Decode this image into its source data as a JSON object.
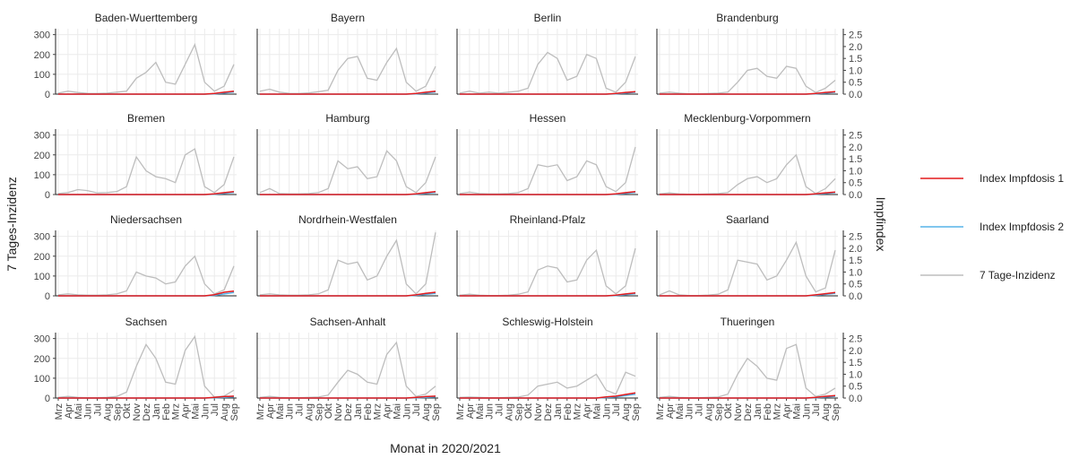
{
  "chart_data": {
    "type": "line",
    "xlabel": "Monat in 2020/2021",
    "ylabel": "7 Tages-Inzidenz",
    "y2label": "Impfindex",
    "ylim": [
      0,
      330
    ],
    "y2lim": [
      0,
      2.75
    ],
    "yticks": [
      "0",
      "100",
      "200",
      "300"
    ],
    "y2ticks": [
      "0.0",
      "0.5",
      "1.0",
      "1.5",
      "2.0",
      "2.5"
    ],
    "months": [
      "Mrz",
      "Apr",
      "Mai",
      "Jun",
      "Jul",
      "Aug",
      "Sep",
      "Okt",
      "Nov",
      "Dez",
      "Jan",
      "Feb",
      "Mrz",
      "Apr",
      "Mai",
      "Jun",
      "Jul",
      "Aug",
      "Sep"
    ],
    "grid": true,
    "legend_position": "right",
    "legend": [
      {
        "name": "Index Impfdosis 1",
        "color": "#e31a1c"
      },
      {
        "name": "Index Impfdosis 2",
        "color": "#56b4e9"
      },
      {
        "name": "7 Tage-Inzidenz",
        "color": "#bdbdbd"
      }
    ],
    "panels": [
      {
        "state": "Baden-Wuerttemberg",
        "incidence": [
          5,
          15,
          8,
          4,
          3,
          5,
          10,
          15,
          80,
          110,
          160,
          60,
          50,
          150,
          250,
          60,
          15,
          40,
          150
        ],
        "dose1": [
          0,
          0,
          0,
          0,
          0,
          0,
          0,
          0,
          0,
          0,
          0,
          0,
          0,
          0,
          0,
          0,
          0.03,
          0.08,
          0.12
        ],
        "dose2": [
          0,
          0,
          0,
          0,
          0,
          0,
          0,
          0,
          0,
          0,
          0,
          0,
          0,
          0,
          0,
          0,
          0.01,
          0.05,
          0.09
        ]
      },
      {
        "state": "Bayern",
        "incidence": [
          15,
          25,
          10,
          4,
          3,
          6,
          12,
          20,
          120,
          180,
          190,
          80,
          70,
          160,
          230,
          60,
          15,
          40,
          140
        ],
        "dose1": [
          0,
          0,
          0,
          0,
          0,
          0,
          0,
          0,
          0,
          0,
          0,
          0,
          0,
          0,
          0,
          0,
          0.03,
          0.08,
          0.12
        ],
        "dose2": [
          0,
          0,
          0,
          0,
          0,
          0,
          0,
          0,
          0,
          0,
          0,
          0,
          0,
          0,
          0,
          0,
          0.01,
          0.05,
          0.09
        ]
      },
      {
        "state": "Berlin",
        "incidence": [
          5,
          15,
          5,
          10,
          5,
          10,
          15,
          30,
          150,
          210,
          180,
          70,
          90,
          200,
          180,
          30,
          10,
          60,
          190
        ],
        "dose1": [
          0,
          0,
          0,
          0,
          0,
          0,
          0,
          0,
          0,
          0,
          0,
          0,
          0,
          0,
          0,
          0,
          0.03,
          0.07,
          0.1
        ],
        "dose2": [
          0,
          0,
          0,
          0,
          0,
          0,
          0,
          0,
          0,
          0,
          0,
          0,
          0,
          0,
          0,
          0,
          0.01,
          0.04,
          0.08
        ]
      },
      {
        "state": "Brandenburg",
        "incidence": [
          5,
          10,
          5,
          2,
          2,
          3,
          5,
          10,
          60,
          120,
          130,
          90,
          80,
          140,
          130,
          40,
          8,
          30,
          70
        ],
        "dose1": [
          0,
          0,
          0,
          0,
          0,
          0,
          0,
          0,
          0,
          0,
          0,
          0,
          0,
          0,
          0,
          0,
          0.03,
          0.07,
          0.1
        ],
        "dose2": [
          0,
          0,
          0,
          0,
          0,
          0,
          0,
          0,
          0,
          0,
          0,
          0,
          0,
          0,
          0,
          0,
          0.01,
          0.04,
          0.08
        ]
      },
      {
        "state": "Bremen",
        "incidence": [
          5,
          10,
          25,
          20,
          8,
          10,
          15,
          40,
          190,
          120,
          90,
          80,
          60,
          200,
          230,
          40,
          10,
          50,
          190
        ],
        "dose1": [
          0,
          0,
          0,
          0,
          0,
          0,
          0,
          0,
          0,
          0,
          0,
          0,
          0,
          0,
          0,
          0,
          0.03,
          0.08,
          0.12
        ],
        "dose2": [
          0,
          0,
          0,
          0,
          0,
          0,
          0,
          0,
          0,
          0,
          0,
          0,
          0,
          0,
          0,
          0,
          0.01,
          0.05,
          0.09
        ]
      },
      {
        "state": "Hamburg",
        "incidence": [
          10,
          30,
          5,
          3,
          3,
          5,
          10,
          30,
          170,
          130,
          140,
          80,
          90,
          220,
          170,
          40,
          10,
          60,
          190
        ],
        "dose1": [
          0,
          0,
          0,
          0,
          0,
          0,
          0,
          0,
          0,
          0,
          0,
          0,
          0,
          0,
          0,
          0,
          0.03,
          0.08,
          0.12
        ],
        "dose2": [
          0,
          0,
          0,
          0,
          0,
          0,
          0,
          0,
          0,
          0,
          0,
          0,
          0,
          0,
          0,
          0,
          0.01,
          0.05,
          0.09
        ]
      },
      {
        "state": "Hessen",
        "incidence": [
          5,
          12,
          5,
          3,
          3,
          5,
          10,
          30,
          150,
          140,
          150,
          70,
          90,
          170,
          150,
          40,
          15,
          60,
          240
        ],
        "dose1": [
          0,
          0,
          0,
          0,
          0,
          0,
          0,
          0,
          0,
          0,
          0,
          0,
          0,
          0,
          0,
          0,
          0.03,
          0.08,
          0.12
        ],
        "dose2": [
          0,
          0,
          0,
          0,
          0,
          0,
          0,
          0,
          0,
          0,
          0,
          0,
          0,
          0,
          0,
          0,
          0.01,
          0.05,
          0.09
        ]
      },
      {
        "state": "Mecklenburg-Vorpommern",
        "incidence": [
          3,
          8,
          3,
          2,
          2,
          3,
          5,
          10,
          50,
          80,
          90,
          60,
          80,
          150,
          200,
          40,
          5,
          30,
          80
        ],
        "dose1": [
          0,
          0,
          0,
          0,
          0,
          0,
          0,
          0,
          0,
          0,
          0,
          0,
          0,
          0,
          0,
          0,
          0.03,
          0.07,
          0.1
        ],
        "dose2": [
          0,
          0,
          0,
          0,
          0,
          0,
          0,
          0,
          0,
          0,
          0,
          0,
          0,
          0,
          0,
          0,
          0.01,
          0.04,
          0.08
        ]
      },
      {
        "state": "Niedersachsen",
        "incidence": [
          5,
          10,
          5,
          3,
          3,
          5,
          10,
          25,
          120,
          100,
          90,
          60,
          70,
          150,
          200,
          60,
          10,
          30,
          150
        ],
        "dose1": [
          0,
          0,
          0,
          0,
          0,
          0,
          0,
          0,
          0,
          0,
          0,
          0,
          0,
          0,
          0,
          0,
          0.05,
          0.15,
          0.2
        ],
        "dose2": [
          0,
          0,
          0,
          0,
          0,
          0,
          0,
          0,
          0,
          0,
          0,
          0,
          0,
          0,
          0,
          0,
          0.02,
          0.08,
          0.14
        ]
      },
      {
        "state": "Nordrhein-Westfalen",
        "incidence": [
          5,
          10,
          5,
          3,
          3,
          5,
          10,
          30,
          180,
          160,
          170,
          80,
          100,
          200,
          280,
          60,
          10,
          60,
          320
        ],
        "dose1": [
          0,
          0,
          0,
          0,
          0,
          0,
          0,
          0,
          0,
          0,
          0,
          0,
          0,
          0,
          0,
          0,
          0.04,
          0.1,
          0.15
        ],
        "dose2": [
          0,
          0,
          0,
          0,
          0,
          0,
          0,
          0,
          0,
          0,
          0,
          0,
          0,
          0,
          0,
          0,
          0.02,
          0.06,
          0.1
        ]
      },
      {
        "state": "Rheinland-Pfalz",
        "incidence": [
          3,
          8,
          3,
          2,
          2,
          3,
          8,
          20,
          130,
          150,
          140,
          70,
          80,
          180,
          230,
          50,
          10,
          50,
          240
        ],
        "dose1": [
          0,
          0,
          0,
          0,
          0,
          0,
          0,
          0,
          0,
          0,
          0,
          0,
          0,
          0,
          0,
          0,
          0.03,
          0.08,
          0.12
        ],
        "dose2": [
          0,
          0,
          0,
          0,
          0,
          0,
          0,
          0,
          0,
          0,
          0,
          0,
          0,
          0,
          0,
          0,
          0.01,
          0.05,
          0.09
        ]
      },
      {
        "state": "Saarland",
        "incidence": [
          5,
          25,
          5,
          2,
          2,
          4,
          8,
          30,
          180,
          170,
          160,
          80,
          100,
          180,
          270,
          100,
          20,
          40,
          230
        ],
        "dose1": [
          0,
          0,
          0,
          0,
          0,
          0,
          0,
          0,
          0,
          0,
          0,
          0,
          0,
          0,
          0,
          0,
          0.04,
          0.09,
          0.14
        ],
        "dose2": [
          0,
          0,
          0,
          0,
          0,
          0,
          0,
          0,
          0,
          0,
          0,
          0,
          0,
          0,
          0,
          0,
          0.02,
          0.06,
          0.1
        ]
      },
      {
        "state": "Sachsen",
        "incidence": [
          3,
          8,
          3,
          2,
          2,
          3,
          8,
          30,
          160,
          270,
          200,
          80,
          70,
          240,
          310,
          60,
          5,
          10,
          40
        ],
        "dose1": [
          0,
          0,
          0,
          0,
          0,
          0,
          0,
          0,
          0,
          0,
          0,
          0,
          0,
          0,
          0,
          0,
          0.03,
          0.06,
          0.08
        ],
        "dose2": [
          0,
          0,
          0,
          0,
          0,
          0,
          0,
          0,
          0,
          0,
          0,
          0,
          0,
          0,
          0,
          0,
          0.01,
          0.03,
          0.05
        ]
      },
      {
        "state": "Sachsen-Anhalt",
        "incidence": [
          3,
          8,
          3,
          2,
          2,
          3,
          5,
          15,
          80,
          140,
          120,
          80,
          70,
          220,
          280,
          60,
          8,
          20,
          60
        ],
        "dose1": [
          0,
          0,
          0,
          0,
          0,
          0,
          0,
          0,
          0,
          0,
          0,
          0,
          0,
          0,
          0,
          0,
          0.03,
          0.06,
          0.08
        ],
        "dose2": [
          0,
          0,
          0,
          0,
          0,
          0,
          0,
          0,
          0,
          0,
          0,
          0,
          0,
          0,
          0,
          0,
          0.01,
          0.03,
          0.05
        ]
      },
      {
        "state": "Schleswig-Holstein",
        "incidence": [
          3,
          5,
          3,
          2,
          2,
          3,
          5,
          15,
          60,
          70,
          80,
          50,
          60,
          90,
          120,
          40,
          20,
          130,
          110
        ],
        "dose1": [
          0,
          0,
          0,
          0,
          0,
          0,
          0,
          0,
          0,
          0,
          0,
          0,
          0,
          0,
          0,
          0.05,
          0.08,
          0.15,
          0.22
        ],
        "dose2": [
          0,
          0,
          0,
          0,
          0,
          0,
          0,
          0,
          0,
          0,
          0,
          0,
          0,
          0,
          0,
          0.02,
          0.05,
          0.1,
          0.16
        ]
      },
      {
        "state": "Thueringen",
        "incidence": [
          3,
          8,
          3,
          2,
          2,
          3,
          5,
          20,
          120,
          200,
          160,
          100,
          90,
          250,
          270,
          50,
          8,
          20,
          50
        ],
        "dose1": [
          0,
          0,
          0,
          0,
          0,
          0,
          0,
          0,
          0,
          0,
          0,
          0,
          0,
          0,
          0,
          0,
          0.03,
          0.07,
          0.1
        ],
        "dose2": [
          0,
          0,
          0,
          0,
          0,
          0,
          0,
          0,
          0,
          0,
          0,
          0,
          0,
          0,
          0,
          0,
          0.01,
          0.04,
          0.07
        ]
      }
    ]
  }
}
